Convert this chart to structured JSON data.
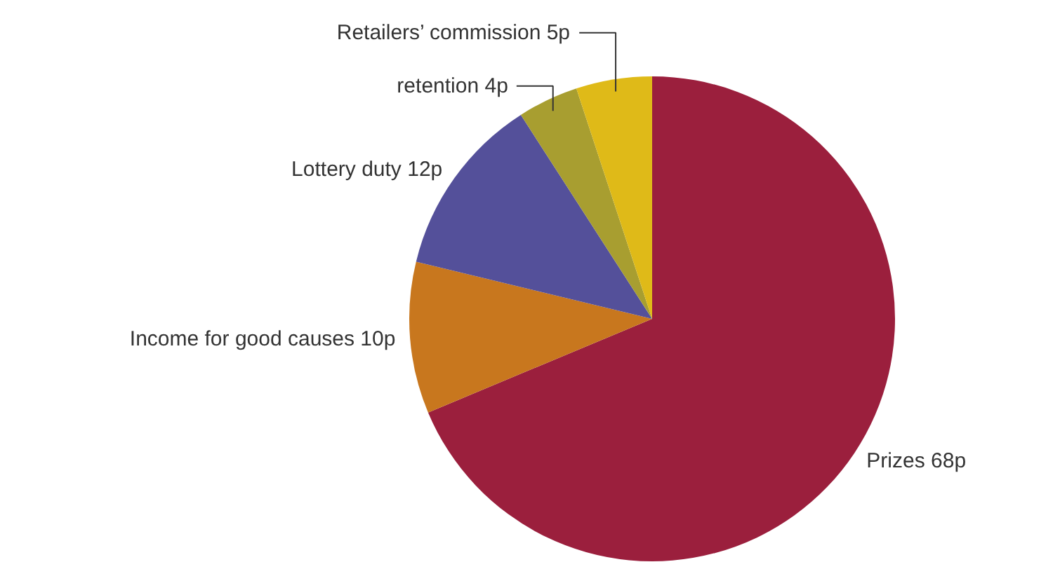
{
  "chart_data": {
    "type": "pie",
    "categories": [
      "Prizes",
      "Income for good causes",
      "Lottery duty",
      "retention",
      "Retailers’ commission"
    ],
    "values": [
      68,
      10,
      12,
      4,
      5
    ],
    "value_labels": [
      "68p",
      "10p",
      "12p",
      "4p",
      "5p"
    ],
    "colors": [
      "#9b1f3d",
      "#c8771e",
      "#54509a",
      "#a89e30",
      "#dfba18"
    ]
  }
}
